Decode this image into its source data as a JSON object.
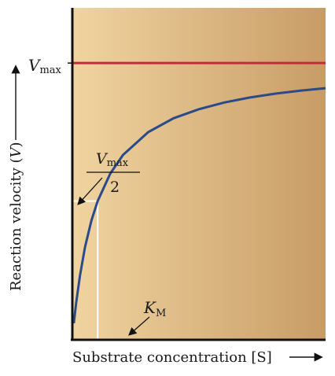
{
  "chart_data": {
    "type": "line",
    "xlabel": "Substrate concentration [S]",
    "ylabel": "Reaction velocity (",
    "ylabel_var": "V",
    "ylabel_close": ")",
    "xlim": [
      0,
      10
    ],
    "ylim": [
      0,
      1.2
    ],
    "vmax": 1.0,
    "km": 1.0,
    "series": [
      {
        "values_note": "",
        "x": [
          0.06,
          0.15,
          0.3,
          0.5,
          0.75,
          1.0,
          1.5,
          2,
          3,
          4,
          5,
          6,
          7,
          8,
          9,
          10
        ],
        "y": [
          0.057,
          0.13,
          0.23,
          0.333,
          0.429,
          0.5,
          0.6,
          0.667,
          0.75,
          0.8,
          0.833,
          0.857,
          0.875,
          0.889,
          0.9,
          0.909
        ]
      }
    ],
    "annotations": {
      "vmax_symbol": "V",
      "vmax_sub": "max",
      "half_numerator": "V",
      "half_sub": "max",
      "half_denominator": "2",
      "km_symbol": "K",
      "km_sub": "M"
    },
    "colors": {
      "curve": "#2b4a8a",
      "vmax_line": "#c8283c",
      "bg_left": "#f0d4a0",
      "bg_right": "#c8a068",
      "guide": "#ffffff",
      "axis": "#111111"
    }
  }
}
